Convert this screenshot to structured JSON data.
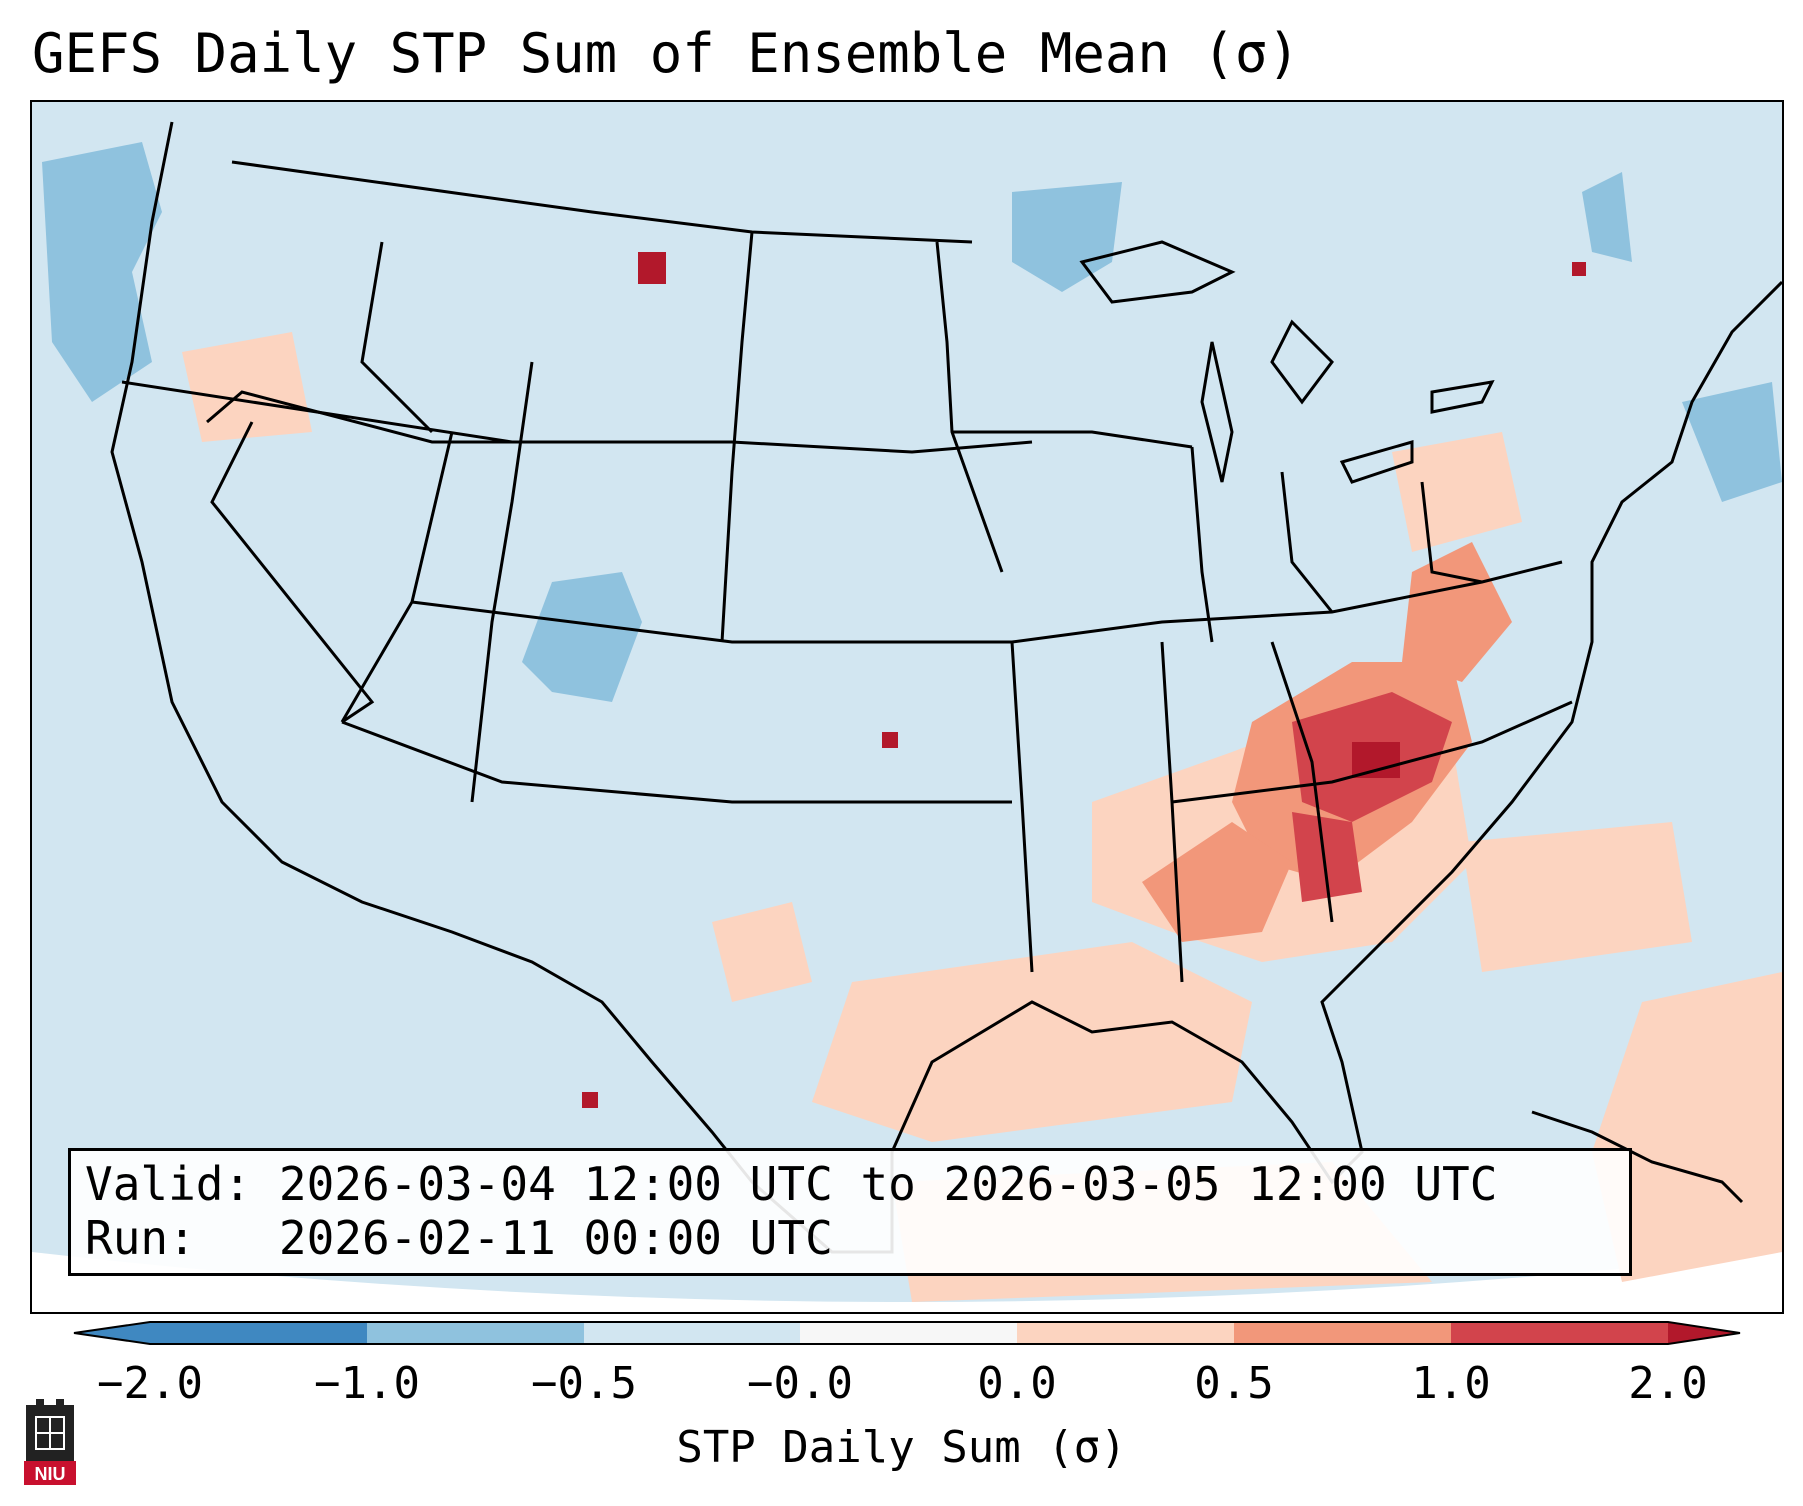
{
  "title": "GEFS Daily STP Sum of Ensemble Mean (σ)",
  "valid_label": "Valid:",
  "valid_text": "2026-03-04 12:00 UTC to 2026-03-05 12:00 UTC",
  "run_label": "Run:",
  "run_text": "2026-02-11 00:00 UTC",
  "colorbar": {
    "label": "STP Daily Sum (σ)",
    "ticks": [
      "−2.0",
      "−1.0",
      "−0.5",
      "−0.0",
      "0.0",
      "0.5",
      "1.0",
      "2.0"
    ],
    "colors": [
      "#3f88c1",
      "#8fc2de",
      "#d2e6f1",
      "#f7f7f7",
      "#fcd4c0",
      "#f2977a",
      "#d2444c",
      "#b2182b"
    ]
  },
  "logo_text": "NIU",
  "colors": {
    "ocean_background": "#d2e6f1",
    "below_mean_strong": "#8fc2de",
    "above_mean_light": "#fcd4c0",
    "above_mean_mid": "#f2977a",
    "above_mean_high": "#d2444c",
    "above_mean_max": "#b2182b"
  },
  "map_features": [
    "US state boundaries",
    "Canada",
    "Mexico",
    "Great Lakes",
    "Cuba"
  ]
}
